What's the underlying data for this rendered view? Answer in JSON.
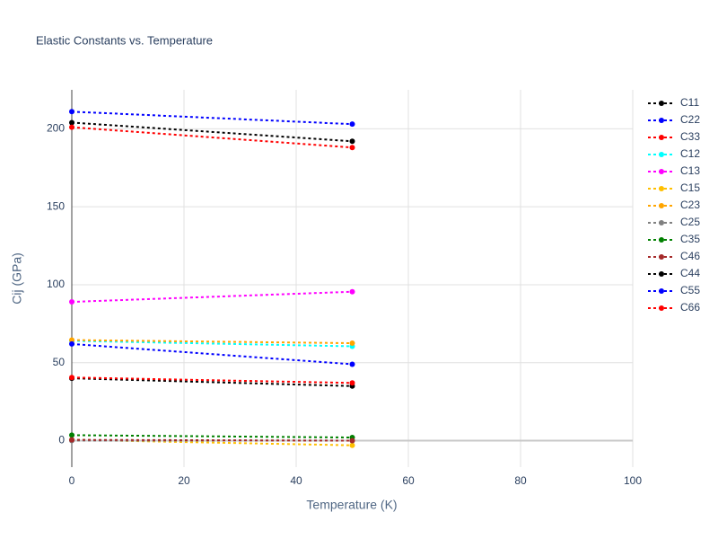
{
  "chart_data": {
    "type": "line",
    "title": "Elastic Constants vs. Temperature",
    "x_label": "Temperature (K)",
    "y_label": "Cij (GPa)",
    "x": [
      0,
      50
    ],
    "xlim": [
      0,
      100
    ],
    "xticks": [
      0,
      20,
      40,
      60,
      80,
      100
    ],
    "ylim": [
      -17,
      225
    ],
    "yticks": [
      0,
      50,
      100,
      150,
      200
    ],
    "grid": true,
    "legend": "right",
    "series": [
      {
        "name": "C11",
        "color": "#000000",
        "values": [
          204,
          192
        ]
      },
      {
        "name": "C22",
        "color": "#0000ff",
        "values": [
          211,
          203
        ]
      },
      {
        "name": "C33",
        "color": "#ff0000",
        "values": [
          201,
          188
        ]
      },
      {
        "name": "C12",
        "color": "#00ffff",
        "values": [
          64,
          60.5
        ]
      },
      {
        "name": "C13",
        "color": "#ff00ff",
        "values": [
          89,
          95.5
        ]
      },
      {
        "name": "C15",
        "color": "#ffbf00",
        "values": [
          0.5,
          -3
        ]
      },
      {
        "name": "C23",
        "color": "#ffa500",
        "values": [
          64.5,
          62.5
        ]
      },
      {
        "name": "C25",
        "color": "#808080",
        "values": [
          0,
          0
        ]
      },
      {
        "name": "C35",
        "color": "#008000",
        "values": [
          3.5,
          2
        ]
      },
      {
        "name": "C46",
        "color": "#a52a2a",
        "values": [
          0.5,
          0
        ]
      },
      {
        "name": "C44",
        "color": "#000000",
        "values": [
          40,
          35
        ]
      },
      {
        "name": "C55",
        "color": "#0000ff",
        "values": [
          62,
          49
        ]
      },
      {
        "name": "C66",
        "color": "#ff0000",
        "values": [
          40.5,
          37
        ]
      }
    ]
  }
}
